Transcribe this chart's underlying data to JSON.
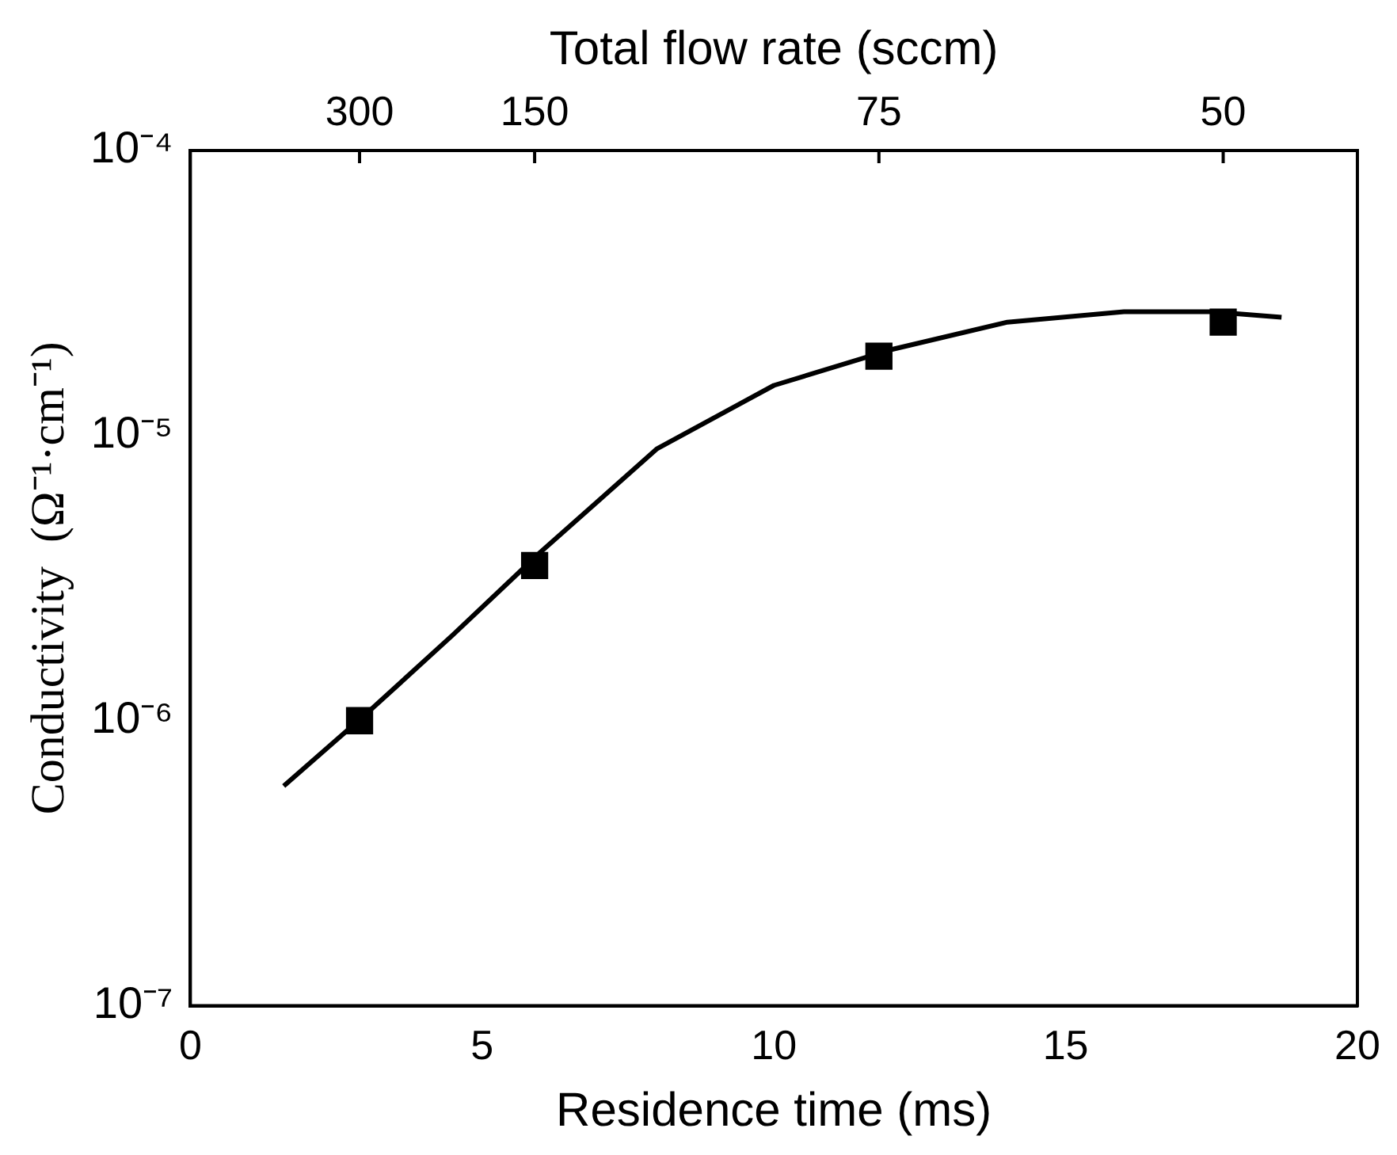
{
  "chart_data": {
    "type": "scatter",
    "xlabel": "Residence time (ms)",
    "ylabel": "Conductivity  (Ω⁻¹·cm⁻¹)",
    "x2label": "Total flow rate (sccm)",
    "xlim": [
      0,
      20
    ],
    "xticks": [
      0,
      5,
      10,
      15,
      20
    ],
    "annotations": [
      {
        "text": "300",
        "x": 2.9
      },
      {
        "text": "150",
        "x": 5.9
      },
      {
        "text": "75",
        "x": 11.8
      },
      {
        "text": "50",
        "x": 17.7
      }
    ],
    "ylim": [
      1e-07,
      0.0001
    ],
    "yticks": [
      {
        "value": 1e-07,
        "label": "10⁻⁷"
      },
      {
        "value": 1e-06,
        "label": "10⁻⁶"
      },
      {
        "value": 1e-05,
        "label": "10⁻⁵"
      },
      {
        "value": 0.0001,
        "label": "10⁻⁴"
      }
    ],
    "log": "y",
    "grid": false,
    "legend": false,
    "series": [
      {
        "color": "#000000",
        "marker": "square",
        "x": [
          2.9,
          5.9,
          11.8,
          17.7
        ],
        "values": [
          1e-06,
          3.5e-06,
          1.9e-05,
          2.5e-05
        ]
      },
      {
        "type": "line",
        "color": "#000000",
        "marker": "none",
        "line_style": "solid",
        "x": [
          1.6,
          3,
          4.5,
          6,
          8,
          10,
          12,
          14,
          16,
          17.5,
          18.7
        ],
        "values": [
          5.9e-07,
          1.05e-06,
          2e-06,
          3.9e-06,
          9e-06,
          1.5e-05,
          2e-05,
          2.5e-05,
          2.72e-05,
          2.72e-05,
          2.6e-05
        ]
      }
    ]
  }
}
